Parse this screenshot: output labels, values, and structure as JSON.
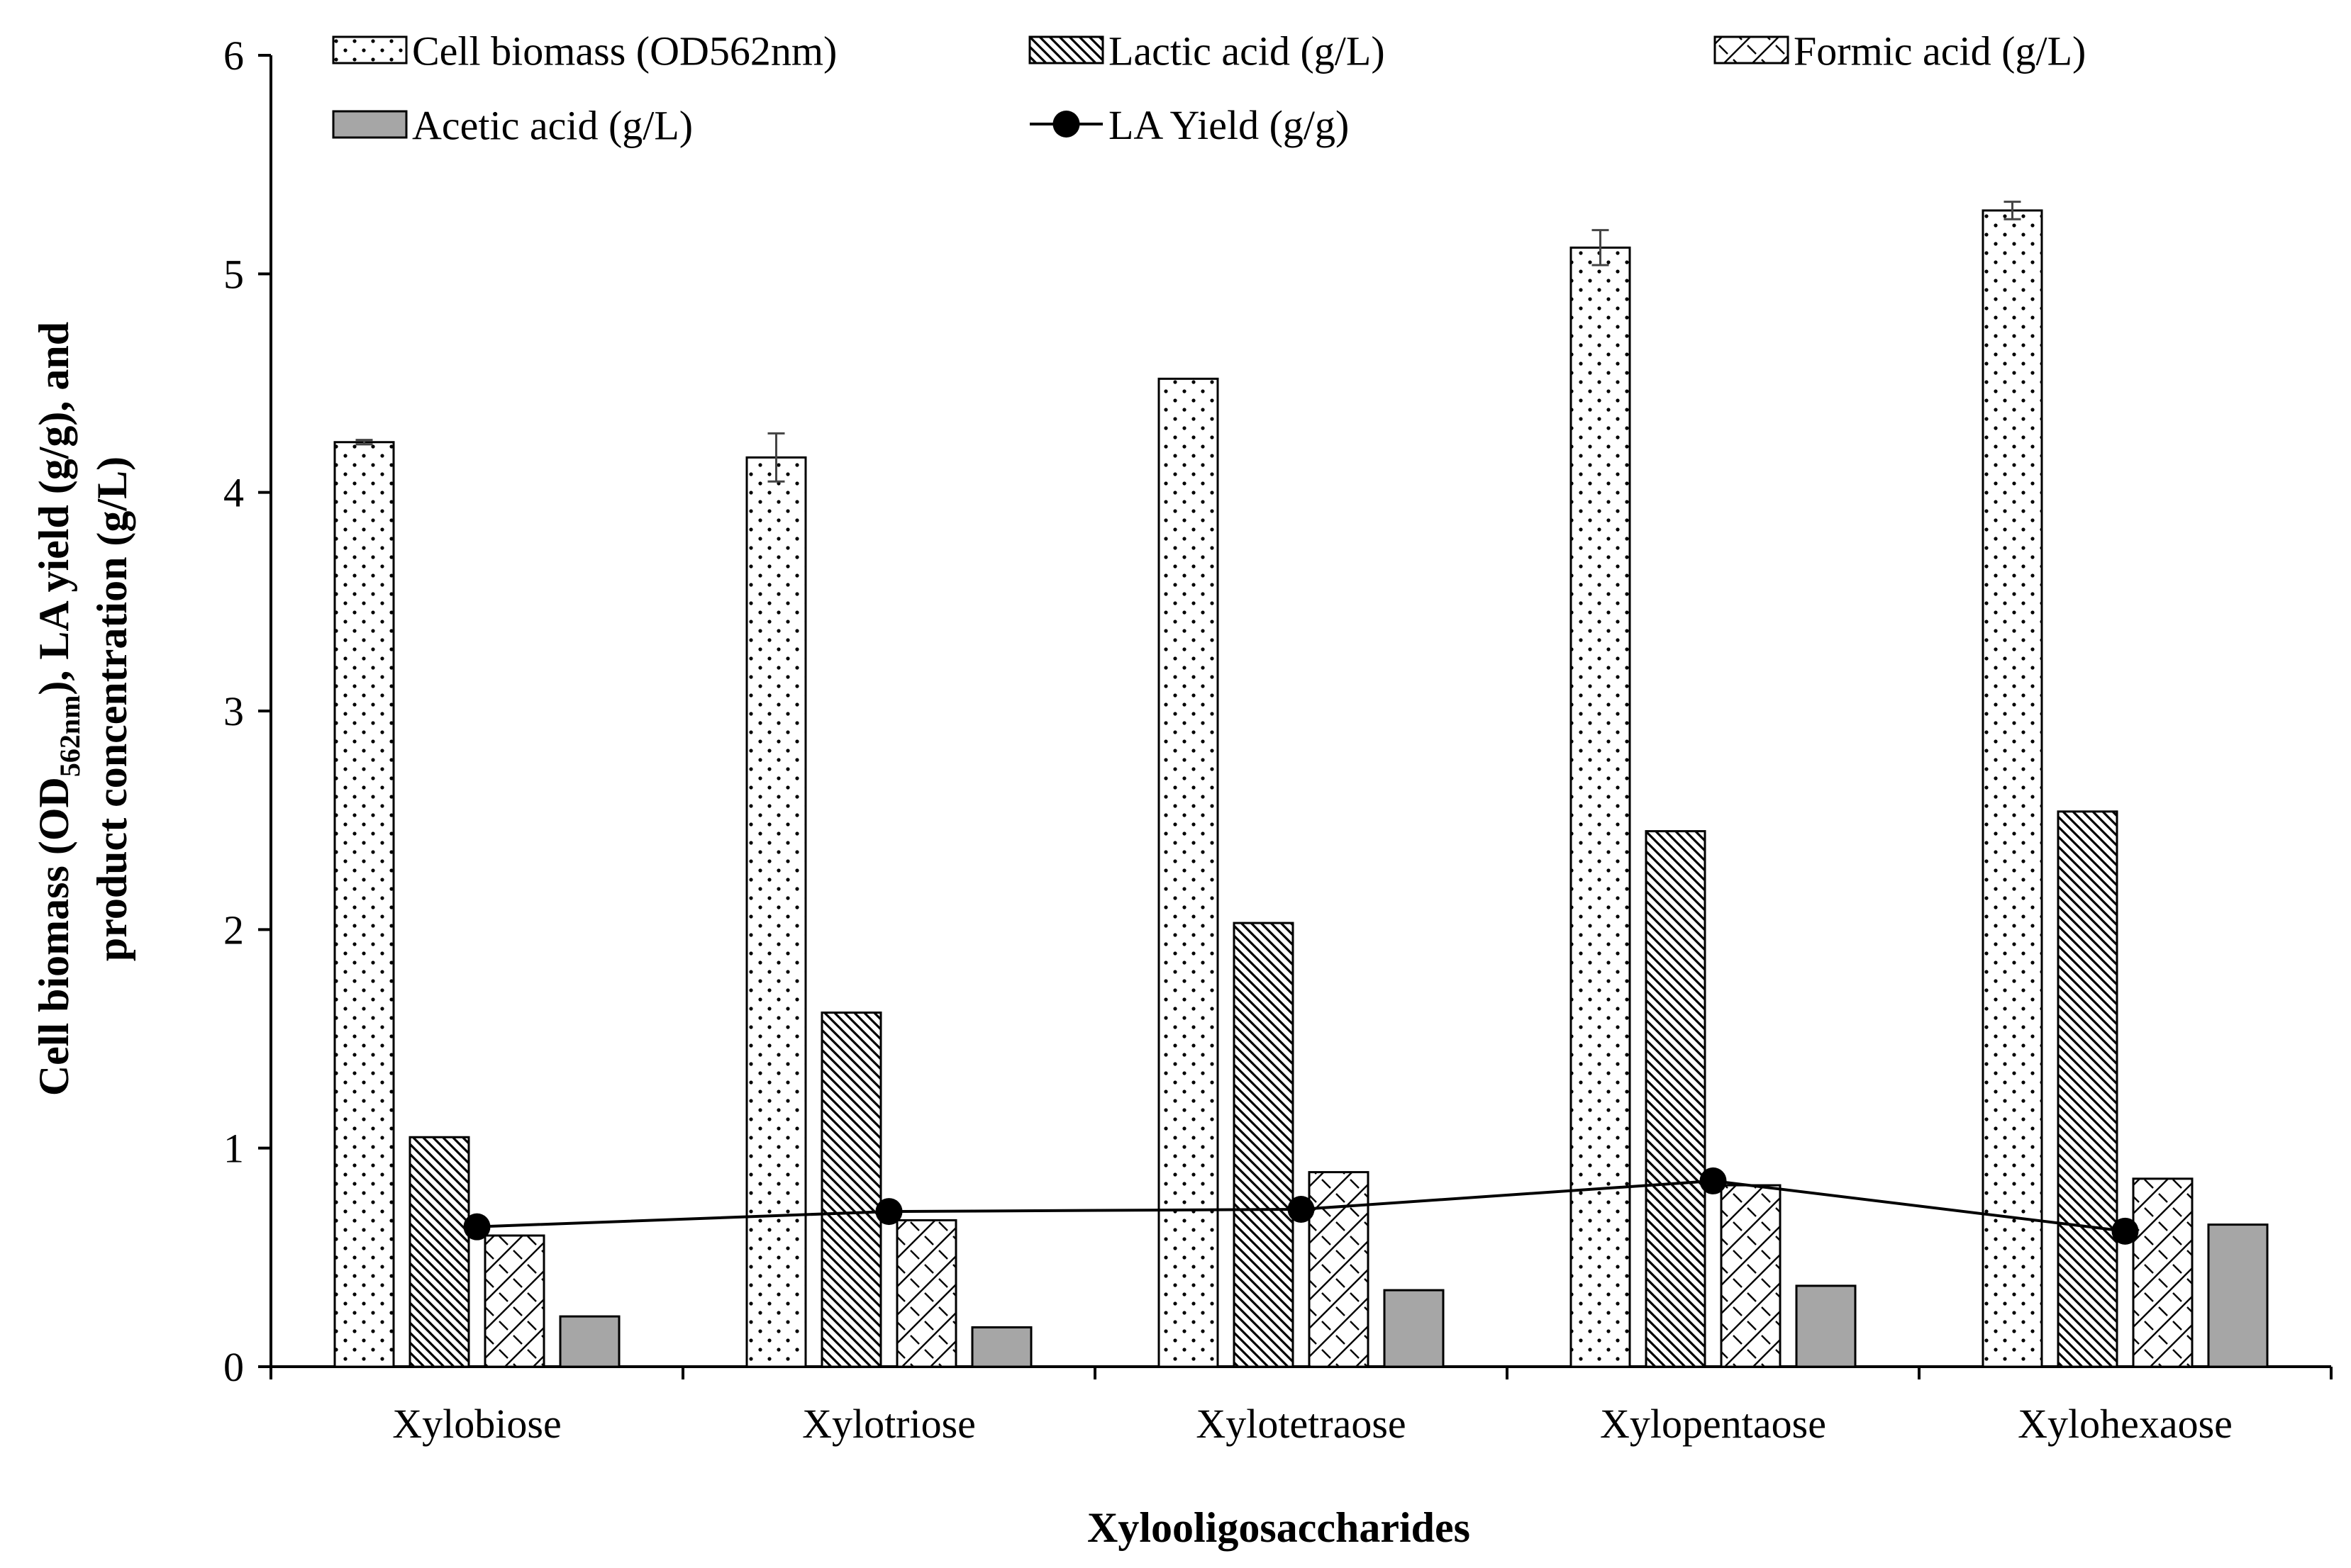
{
  "chart_data": {
    "type": "bar",
    "xlabel": "Xylooligosaccharides",
    "ylabel_main": "Cell biomass (OD",
    "ylabel_sub": "562nm",
    "ylabel_rest": "), LA yield (g/g), and",
    "ylabel_line2": "product concentration (g/L)",
    "ylim": [
      0,
      6
    ],
    "yticks": [
      0,
      1,
      2,
      3,
      4,
      5,
      6
    ],
    "categories": [
      "Xylobiose",
      "Xylotriose",
      "Xylotetraose",
      "Xylopentaose",
      "Xylohexaose"
    ],
    "series": [
      {
        "name": "Cell biomass  (OD562nm)",
        "pattern": "dots",
        "values": [
          4.23,
          4.16,
          4.52,
          5.12,
          5.29
        ],
        "errors": [
          0.01,
          0.11,
          0,
          0.08,
          0.04
        ]
      },
      {
        "name": "Lactic acid (g/L)",
        "pattern": "hatch",
        "values": [
          1.05,
          1.62,
          2.03,
          2.45,
          2.54
        ]
      },
      {
        "name": "Formic acid (g/L)",
        "pattern": "weave",
        "values": [
          0.6,
          0.67,
          0.89,
          0.83,
          0.86
        ]
      },
      {
        "name": "Acetic acid (g/L)",
        "pattern": "gray",
        "values": [
          0.23,
          0.18,
          0.35,
          0.37,
          0.65
        ]
      }
    ],
    "line_series": {
      "name": "LA Yield (g/g)",
      "values": [
        0.64,
        0.71,
        0.72,
        0.85,
        0.62
      ]
    },
    "colors": {
      "gray_fill": "#a6a6a6",
      "axis": "#000000",
      "bar_stroke": "#000000"
    }
  }
}
